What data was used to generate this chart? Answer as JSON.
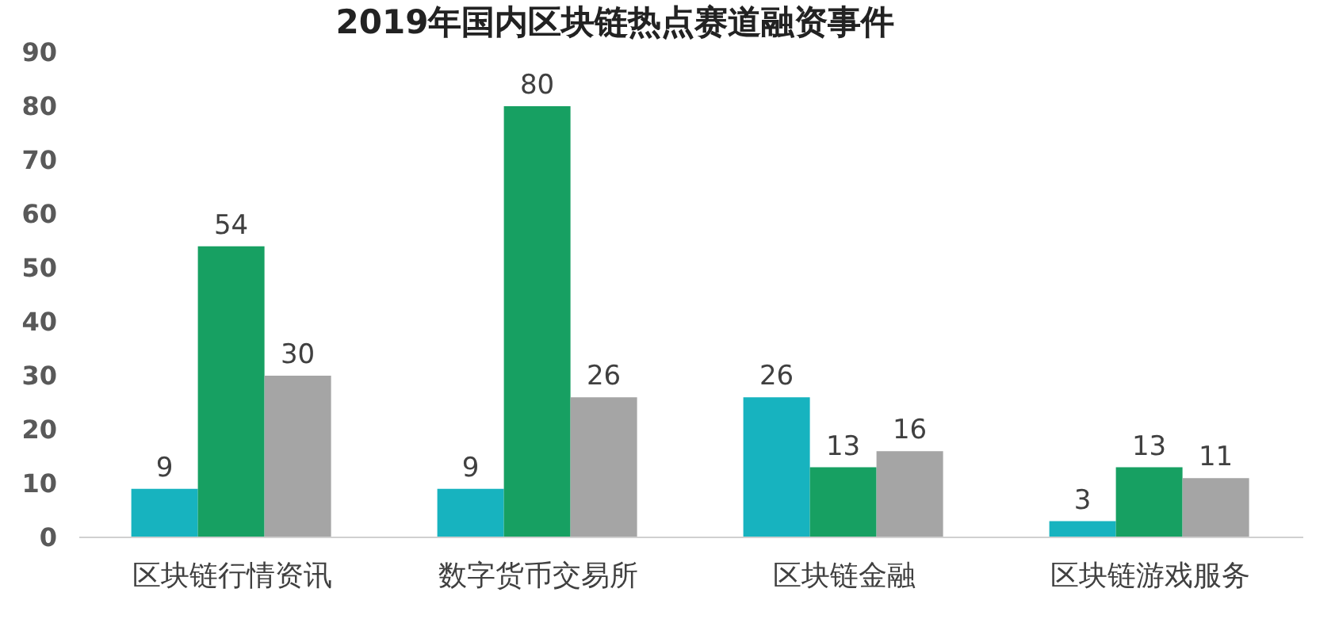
{
  "chart_data": {
    "type": "bar",
    "title": "2019年国内区块链热点赛道融资事件",
    "categories": [
      "区块链行情资讯",
      "数字货币交易所",
      "区块链金融",
      "区块链游戏服务"
    ],
    "series": [
      {
        "color": "#17b3bf",
        "values": [
          9,
          9,
          26,
          3
        ]
      },
      {
        "color": "#17a062",
        "values": [
          54,
          80,
          13,
          13
        ]
      },
      {
        "color": "#a5a5a5",
        "values": [
          30,
          26,
          16,
          11
        ]
      }
    ],
    "ylim": [
      0,
      90
    ],
    "yticks": [
      0,
      10,
      20,
      30,
      40,
      50,
      60,
      70,
      80,
      90
    ],
    "grid": false,
    "data_labels": true
  }
}
